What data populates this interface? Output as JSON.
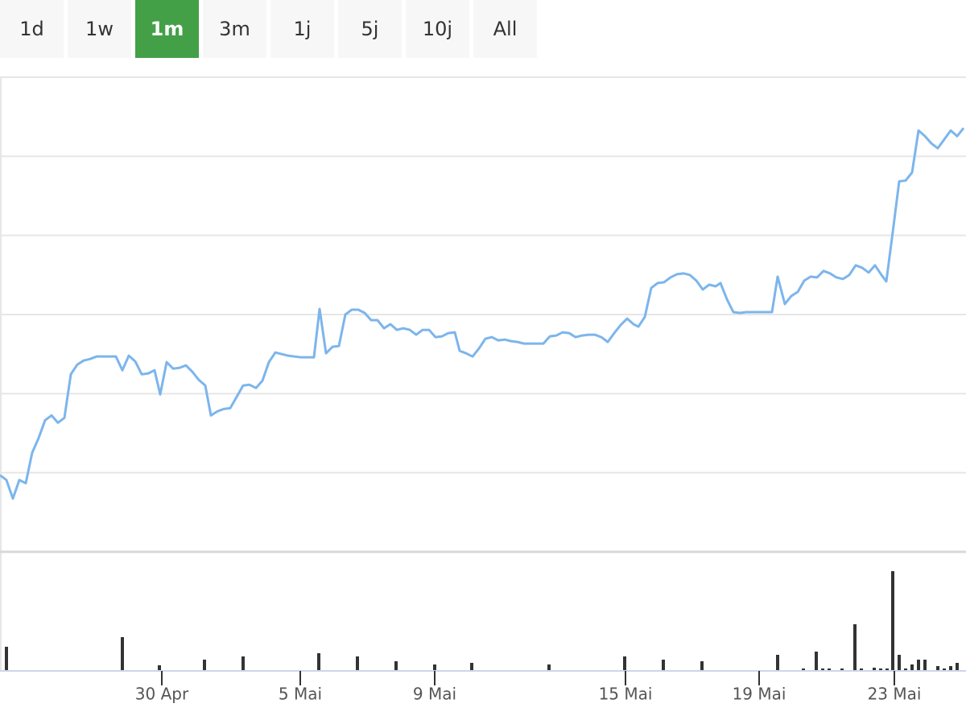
{
  "buttons": [
    "1d",
    "1w",
    "1m",
    "3m",
    "1j",
    "5j",
    "10j",
    "All"
  ],
  "selected_button": 2,
  "chart_data": [
    {
      "type": "line",
      "color": "#7cb5ec",
      "xlim": [
        0,
        1200
      ],
      "ylim": [
        0,
        588
      ],
      "grid": true,
      "grid_lines": [
        98,
        196,
        294,
        392,
        490,
        588
      ],
      "x": [
        0,
        8,
        16,
        24,
        32,
        40,
        48,
        56,
        64,
        72,
        80,
        88,
        96,
        104,
        112,
        120,
        128,
        136,
        144,
        152,
        160,
        168,
        176,
        184,
        192,
        199,
        207,
        215,
        223,
        231,
        239,
        247,
        255,
        262,
        270,
        278,
        286,
        294,
        302,
        310,
        318,
        326,
        334,
        342,
        350,
        358,
        366,
        374,
        382,
        390,
        397,
        405,
        413,
        421,
        429,
        437,
        445,
        453,
        461,
        469,
        477,
        485,
        493,
        501,
        509,
        517,
        525,
        533,
        541,
        549,
        557,
        565,
        571,
        579,
        587,
        595,
        603,
        611,
        619,
        627,
        635,
        643,
        651,
        659,
        667,
        675,
        683,
        691,
        699,
        707,
        715,
        723,
        731,
        739,
        747,
        755,
        763,
        771,
        779,
        787,
        793,
        801,
        809,
        817,
        825,
        833,
        841,
        849,
        857,
        865,
        873,
        881,
        889,
        895,
        903,
        911,
        919,
        927,
        935,
        943,
        951,
        959,
        966,
        975,
        983,
        991,
        999,
        1007,
        1015,
        1023,
        1031,
        1039,
        1047,
        1055,
        1063,
        1071,
        1079,
        1087,
        1095,
        1101,
        1109,
        1117,
        1125,
        1133,
        1141,
        1149,
        1157,
        1165,
        1173,
        1181,
        1189,
        1197
      ],
      "values": [
        95,
        89,
        66,
        89,
        85,
        123,
        141,
        163,
        169,
        160,
        166,
        220,
        232,
        237,
        239,
        242,
        242,
        242,
        242,
        225,
        243,
        236,
        220,
        221,
        225,
        195,
        235,
        227,
        228,
        231,
        223,
        213,
        206,
        169,
        174,
        177,
        178,
        192,
        206,
        207,
        203,
        212,
        235,
        247,
        245,
        243,
        242,
        241,
        241,
        241,
        301,
        246,
        254,
        255,
        294,
        300,
        300,
        296,
        287,
        287,
        277,
        282,
        275,
        277,
        275,
        269,
        275,
        275,
        266,
        267,
        271,
        272,
        249,
        246,
        242,
        252,
        264,
        266,
        262,
        263,
        261,
        260,
        258,
        258,
        258,
        258,
        267,
        268,
        272,
        271,
        266,
        268,
        269,
        269,
        266,
        260,
        271,
        281,
        289,
        282,
        279,
        291,
        327,
        333,
        334,
        340,
        344,
        345,
        343,
        336,
        325,
        331,
        329,
        333,
        313,
        297,
        296,
        297,
        297,
        297,
        297,
        297,
        341,
        307,
        317,
        322,
        336,
        341,
        340,
        348,
        345,
        340,
        338,
        343,
        355,
        352,
        346,
        355,
        343,
        335,
        396,
        459,
        460,
        470,
        522,
        515,
        506,
        500,
        511,
        522,
        515,
        525
      ]
    },
    {
      "type": "bar",
      "color": "#333333",
      "xlim": [
        0,
        1200
      ],
      "ylim": [
        0,
        148
      ],
      "xticks": [
        {
          "value": 201,
          "label": "30 Apr"
        },
        {
          "value": 373,
          "label": "5 Mai"
        },
        {
          "value": 540,
          "label": "9 Mai"
        },
        {
          "value": 777,
          "label": "15 Mai"
        },
        {
          "value": 943,
          "label": "19 Mai"
        },
        {
          "value": 1111,
          "label": "23 Mai"
        }
      ],
      "x": [
        8,
        152,
        198,
        254,
        302,
        396,
        444,
        492,
        540,
        586,
        682,
        776,
        824,
        872,
        966,
        998,
        1014,
        1022,
        1030,
        1046,
        1062,
        1070,
        1086,
        1094,
        1102,
        1109,
        1117,
        1125,
        1133,
        1141,
        1149,
        1165,
        1173,
        1181,
        1189
      ],
      "values": [
        30,
        42,
        7,
        14,
        18,
        22,
        18,
        12,
        8,
        10,
        8,
        18,
        14,
        12,
        20,
        3,
        24,
        3,
        3,
        3,
        58,
        3,
        4,
        3,
        3,
        124,
        20,
        3,
        8,
        14,
        14,
        6,
        3,
        6,
        10
      ]
    }
  ]
}
